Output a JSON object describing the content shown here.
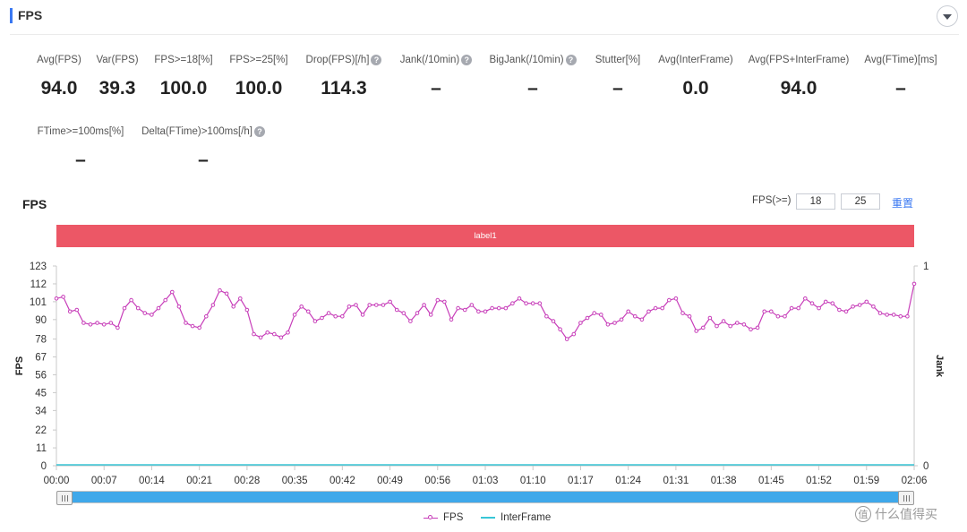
{
  "header": {
    "title": "FPS"
  },
  "metrics": [
    {
      "label": "Avg(FPS)",
      "value": "94.0",
      "help": false
    },
    {
      "label": "Var(FPS)",
      "value": "39.3",
      "help": false
    },
    {
      "label": "FPS>=18[%]",
      "value": "100.0",
      "help": false
    },
    {
      "label": "FPS>=25[%]",
      "value": "100.0",
      "help": false
    },
    {
      "label": "Drop(FPS)[/h]",
      "value": "114.3",
      "help": true
    },
    {
      "label": "Jank(/10min)",
      "value": "–",
      "help": true
    },
    {
      "label": "BigJank(/10min)",
      "value": "–",
      "help": true
    },
    {
      "label": "Stutter[%]",
      "value": "–",
      "help": false
    },
    {
      "label": "Avg(InterFrame)",
      "value": "0.0",
      "help": false
    },
    {
      "label": "Avg(FPS+InterFrame)",
      "value": "94.0",
      "help": false
    },
    {
      "label": "Avg(FTime)[ms]",
      "value": "–",
      "help": false
    },
    {
      "label": "FTime>=100ms[%]",
      "value": "–",
      "help": false
    },
    {
      "label": "Delta(FTime)>100ms[/h]",
      "value": "–",
      "help": true
    }
  ],
  "chart_section": {
    "title": "FPS",
    "threshold_label": "FPS(>=)",
    "threshold_1": "18",
    "threshold_2": "25",
    "reset_label": "重置",
    "band_label": "label1"
  },
  "chart_data": {
    "type": "line",
    "ylabel": "FPS",
    "y2label": "Jank",
    "y_ticks": [
      "123",
      "112",
      "101",
      "90",
      "78",
      "67",
      "56",
      "45",
      "34",
      "22",
      "11",
      "0"
    ],
    "y_tick_values": [
      123,
      112,
      101,
      90,
      78,
      67,
      56,
      45,
      34,
      22,
      11,
      0
    ],
    "ylim": [
      0,
      123
    ],
    "y2_ticks": [
      "1",
      "0"
    ],
    "x_ticks": [
      "00:00",
      "00:07",
      "00:14",
      "00:21",
      "00:28",
      "00:35",
      "00:42",
      "00:49",
      "00:56",
      "01:03",
      "01:10",
      "01:17",
      "01:24",
      "01:31",
      "01:38",
      "01:45",
      "01:52",
      "01:59",
      "02:06"
    ],
    "x_range_seconds": [
      0,
      126
    ],
    "series": [
      {
        "name": "FPS",
        "color": "#c73db9",
        "values": [
          103,
          104,
          95,
          96,
          88,
          87,
          88,
          87,
          88,
          85,
          97,
          102,
          97,
          94,
          93,
          97,
          102,
          107,
          98,
          88,
          86,
          85,
          92,
          99,
          108,
          106,
          98,
          103,
          96,
          81,
          79,
          82,
          81,
          79,
          82,
          93,
          98,
          95,
          89,
          91,
          94,
          92,
          92,
          98,
          99,
          93,
          99,
          99,
          99,
          101,
          96,
          94,
          89,
          94,
          99,
          93,
          102,
          101,
          90,
          97,
          96,
          99,
          95,
          95,
          97,
          97,
          97,
          100,
          103,
          100,
          100,
          100,
          92,
          89,
          84,
          78,
          81,
          88,
          91,
          94,
          93,
          87,
          88,
          90,
          95,
          92,
          90,
          95,
          97,
          97,
          102,
          103,
          94,
          92,
          83,
          85,
          91,
          86,
          89,
          86,
          88,
          87,
          84,
          85,
          95,
          95,
          92,
          92,
          97,
          97,
          103,
          100,
          97,
          101,
          100,
          96,
          95,
          98,
          99,
          101,
          98,
          94,
          93,
          93,
          92,
          92,
          112
        ]
      },
      {
        "name": "InterFrame",
        "color": "#38c6d6",
        "values": [
          0,
          0
        ]
      }
    ],
    "grid": false,
    "legend_position": "bottom-center"
  },
  "slider": {
    "start": 0,
    "end": 1
  },
  "watermark": {
    "text": "什么值得买",
    "logo": "值"
  }
}
